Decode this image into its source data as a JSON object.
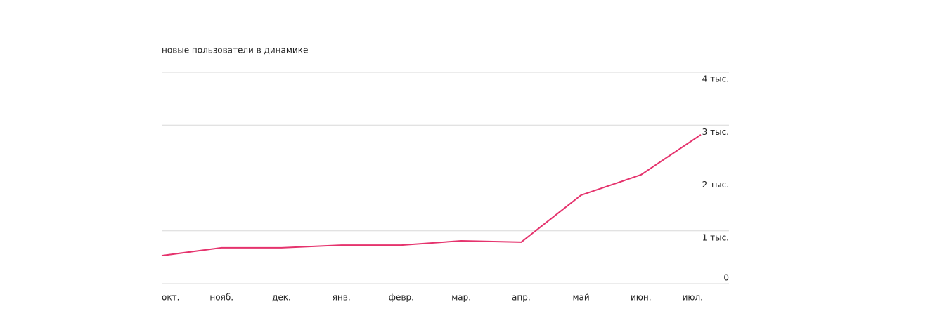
{
  "chart_data": {
    "type": "line",
    "title": "новые пользователи в динамике",
    "categories": [
      "окт.",
      "нояб.",
      "дек.",
      "янв.",
      "февр.",
      "мар.",
      "апр.",
      "май",
      "июн.",
      "июл."
    ],
    "series": [
      {
        "color": "#e5336d",
        "values": [
          530,
          680,
          680,
          730,
          730,
          810,
          785,
          1675,
          2060,
          2820
        ]
      }
    ],
    "ylim": [
      0,
      4000
    ],
    "yticks": [
      0,
      {
        "value": 1000,
        "label": "1 тыс."
      },
      {
        "value": 2000,
        "label": "2 тыс."
      },
      {
        "value": 3000,
        "label": "3 тыс."
      },
      {
        "value": 4000,
        "label": "4 тыс."
      }
    ],
    "grid": true
  }
}
